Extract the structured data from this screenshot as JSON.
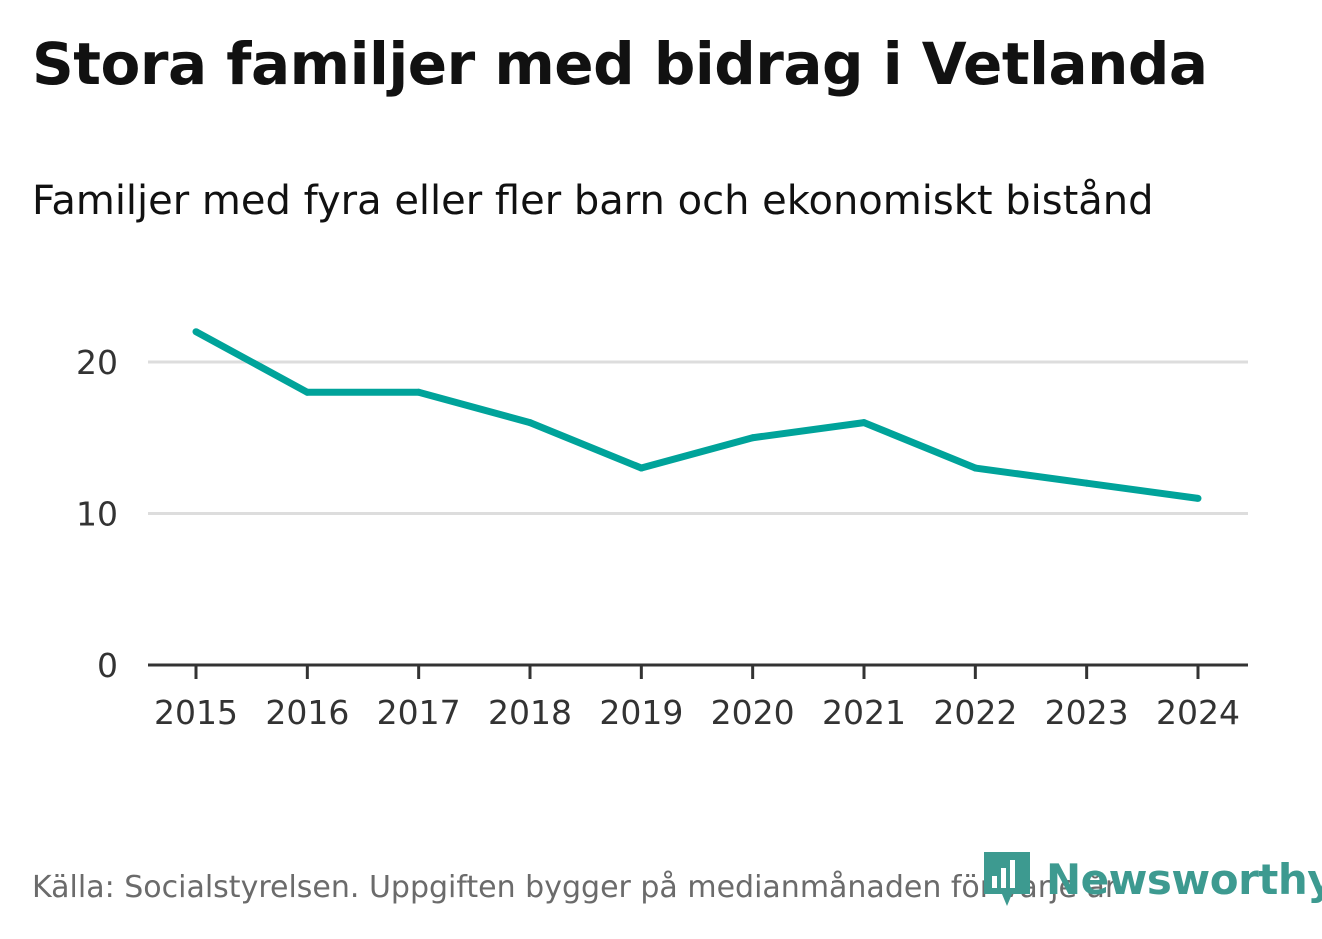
{
  "title": "Stora familjer med bidrag i Vetlanda",
  "subtitle": "Familjer med fyra eller fler barn och ekonomiskt bistånd",
  "source": "Källa: Socialstyrelsen. Uppgiften bygger på medianmånaden för varje år",
  "brand": {
    "name": "Newsworthy",
    "color": "#3d9a90",
    "icon": "newsworthy-logo-icon"
  },
  "colors": {
    "line": "#00a39a",
    "grid": "#dddddd",
    "axis": "#333333",
    "tick_text": "#333333"
  },
  "chart_data": {
    "type": "line",
    "title": "Stora familjer med bidrag i Vetlanda",
    "subtitle": "Familjer med fyra eller fler barn och ekonomiskt bistånd",
    "xlabel": "",
    "ylabel": "",
    "categories": [
      "2015",
      "2016",
      "2017",
      "2018",
      "2019",
      "2020",
      "2021",
      "2022",
      "2023",
      "2024"
    ],
    "series": [
      {
        "name": "Familjer",
        "values": [
          22,
          18,
          18,
          16,
          13,
          15,
          16,
          13,
          12,
          11
        ]
      }
    ],
    "ylim": [
      0,
      25
    ],
    "yticks": [
      0,
      10,
      20
    ],
    "ytick_labels": [
      "0",
      "10",
      "20"
    ],
    "grid": true,
    "legend": "none"
  }
}
